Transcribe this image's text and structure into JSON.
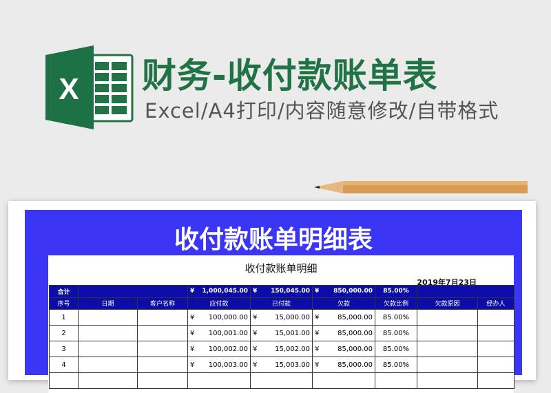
{
  "header": {
    "title": "财务-收付款账单表",
    "subtitle": "Excel/A4打印/内容随意修改/自带格式"
  },
  "logo": {
    "letter": "X",
    "brand_color": "#217346"
  },
  "panel": {
    "heading": "收付款账单明细表",
    "color": "#3b35f5"
  },
  "sheet": {
    "title": "收付款账单明细",
    "date": "2019年7月23日",
    "total": {
      "label": "合计",
      "currency": "¥",
      "payable": "1,000,045.00",
      "paid": "150,045.00",
      "owed": "850,000.00",
      "ratio": "85.00%"
    },
    "columns": [
      "序号",
      "日期",
      "客户名称",
      "应付款",
      "已付款",
      "欠款",
      "欠款比例",
      "欠款原因",
      "经办人"
    ],
    "rows": [
      {
        "no": "1",
        "payable": "100,000.00",
        "paid": "15,000.00",
        "owed": "85,000.00",
        "ratio": "85.00%"
      },
      {
        "no": "2",
        "payable": "100,001.00",
        "paid": "15,001.00",
        "owed": "85,000.00",
        "ratio": "85.00%"
      },
      {
        "no": "3",
        "payable": "100,002.00",
        "paid": "15,002.00",
        "owed": "85,000.00",
        "ratio": "85.00%"
      },
      {
        "no": "4",
        "payable": "100,003.00",
        "paid": "15,003.00",
        "owed": "85,000.00",
        "ratio": "85.00%"
      }
    ]
  }
}
